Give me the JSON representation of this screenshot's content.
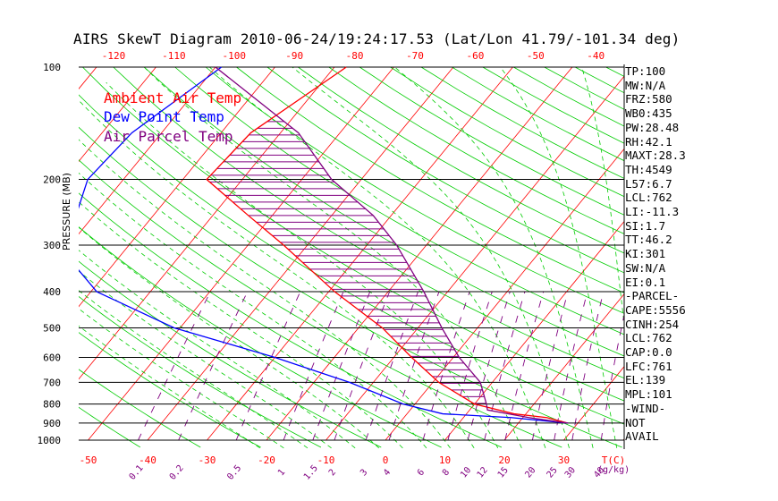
{
  "title": "AIRS SkewT Diagram 2010-06-24/19:24:17.53 (Lat/Lon 41.79/-101.34 deg)",
  "legend": [
    {
      "label": "Ambient Air Temp",
      "color": "#ff0000"
    },
    {
      "label": "Dew Point Temp",
      "color": "#0000ff"
    },
    {
      "label": "Air Parcel Temp",
      "color": "#800080"
    }
  ],
  "stats": [
    "TP:100",
    "MW:N/A",
    "FRZ:580",
    "WB0:435",
    "PW:28.48",
    "RH:42.1",
    "MAXT:28.3",
    "TH:4549",
    "L57:6.7",
    "LCL:762",
    "LI:-11.3",
    "SI:1.7",
    "TT:46.2",
    "KI:301",
    "SW:N/A",
    "EI:0.1",
    "-PARCEL-",
    "CAPE:5556",
    "CINH:254",
    "LCL:762",
    "CAP:0.0",
    "LFC:761",
    "EL:139",
    "MPL:101",
    "-WIND-",
    "NOT",
    "AVAIL"
  ],
  "chart_data": {
    "type": "line",
    "title": "AIRS SkewT Diagram 2010-06-24/19:24:17.53 (Lat/Lon 41.79/-101.34 deg)",
    "ylabel": "PRESSURE (MB)",
    "xlabel": "T(C)",
    "mixing_ratio_label": "(g/kg)",
    "y_scale": "log",
    "ylim": [
      1000,
      100
    ],
    "y_ticks": [
      100,
      200,
      300,
      400,
      500,
      600,
      700,
      800,
      900,
      1000
    ],
    "x_bottom_ticks": [
      -50,
      -40,
      -30,
      -20,
      -10,
      0,
      10,
      20,
      30
    ],
    "x_top_ticks": [
      -120,
      -110,
      -100,
      -90,
      -80,
      -70,
      -60,
      -50,
      -40
    ],
    "mixing_ratio_ticks": [
      "0.1",
      "0.2",
      "0.5",
      "1",
      "1.5",
      "2",
      "3",
      "4",
      "6",
      "8",
      "10",
      "12",
      "15",
      "20",
      "25",
      "30",
      "40"
    ],
    "series": [
      {
        "name": "Ambient Air Temp",
        "color": "#ff0000",
        "points": [
          [
            100,
            -58
          ],
          [
            150,
            -65
          ],
          [
            200,
            -66
          ],
          [
            250,
            -54
          ],
          [
            300,
            -44
          ],
          [
            400,
            -29
          ],
          [
            500,
            -16
          ],
          [
            600,
            -7
          ],
          [
            700,
            1
          ],
          [
            800,
            10
          ],
          [
            850,
            18
          ],
          [
            870,
            24
          ],
          [
            900,
            28.3
          ]
        ]
      },
      {
        "name": "Dew Point Temp",
        "color": "#0000ff",
        "points": [
          [
            100,
            -79
          ],
          [
            150,
            -85
          ],
          [
            200,
            -86
          ],
          [
            250,
            -83
          ],
          [
            300,
            -82
          ],
          [
            400,
            -69
          ],
          [
            500,
            -51
          ],
          [
            600,
            -30
          ],
          [
            700,
            -14
          ],
          [
            800,
            -2
          ],
          [
            850,
            6
          ],
          [
            870,
            18
          ],
          [
            900,
            28.3
          ]
        ]
      },
      {
        "name": "Air Parcel Temp",
        "color": "#800080",
        "points": [
          [
            100,
            -80
          ],
          [
            150,
            -57
          ],
          [
            200,
            -45
          ],
          [
            250,
            -33
          ],
          [
            300,
            -25
          ],
          [
            400,
            -14
          ],
          [
            500,
            -6
          ],
          [
            600,
            1
          ],
          [
            700,
            8
          ],
          [
            800,
            12
          ],
          [
            830,
            13
          ],
          [
            870,
            21
          ],
          [
            900,
            28.3
          ]
        ]
      }
    ],
    "hatched_region": "CAPE"
  }
}
